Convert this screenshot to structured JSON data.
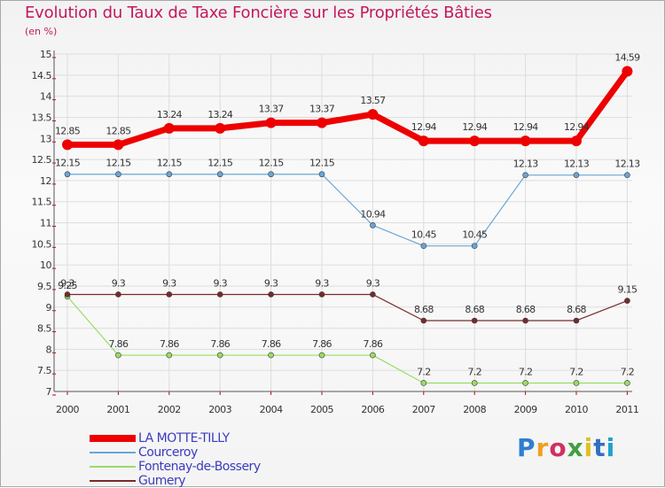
{
  "title": "Evolution du Taux de Taxe Foncière sur les Propriétés Bâties",
  "unit_label": "(en %)",
  "logo": {
    "text": "Proxiti",
    "colors": [
      "#2f7fd0",
      "#f0a020",
      "#d03060",
      "#40a040",
      "#e0c020",
      "#3070c0",
      "#20a0d0"
    ]
  },
  "chart_data": {
    "type": "line",
    "title": "Evolution du Taux de Taxe Foncière sur les Propriétés Bâties",
    "ylabel": "(en %)",
    "xlabel": "",
    "ylim": [
      7,
      15
    ],
    "yticks": [
      "7",
      "7.5",
      "8",
      "8.5",
      "9",
      "9.5",
      "10",
      "10.5",
      "11",
      "11.5",
      "12",
      "12.5",
      "13",
      "13.5",
      "14",
      "14.5",
      "15"
    ],
    "categories": [
      "2000",
      "2001",
      "2002",
      "2003",
      "2004",
      "2005",
      "2006",
      "2007",
      "2008",
      "2009",
      "2010",
      "2011"
    ],
    "series": [
      {
        "name": "LA MOTTE-TILLY",
        "color": "#ee0000",
        "width": 7,
        "marker": 6,
        "values": [
          12.85,
          12.85,
          13.24,
          13.24,
          13.37,
          13.37,
          13.57,
          12.94,
          12.94,
          12.94,
          12.94,
          14.59
        ],
        "labels": [
          "12.85",
          "12.85",
          "13.24",
          "13.24",
          "13.37",
          "13.37",
          "13.57",
          "12.94",
          "12.94",
          "12.94",
          "12.94",
          "14.59"
        ]
      },
      {
        "name": "Courceroy",
        "color": "#6aa6d6",
        "width": 1.2,
        "marker": 3,
        "values": [
          12.15,
          12.15,
          12.15,
          12.15,
          12.15,
          12.15,
          10.94,
          10.45,
          10.45,
          12.13,
          12.13,
          12.13
        ],
        "labels": [
          "12.15",
          "12.15",
          "12.15",
          "12.15",
          "12.15",
          "12.15",
          "10.94",
          "10.45",
          "10.45",
          "12.13",
          "12.13",
          "12.13"
        ]
      },
      {
        "name": "Fontenay-de-Bossery",
        "color": "#99dd66",
        "width": 1.2,
        "marker": 3,
        "values": [
          9.25,
          7.86,
          7.86,
          7.86,
          7.86,
          7.86,
          7.86,
          7.2,
          7.2,
          7.2,
          7.2,
          7.2
        ],
        "labels": [
          "9.25",
          "7.86",
          "7.86",
          "7.86",
          "7.86",
          "7.86",
          "7.86",
          "7.2",
          "7.2",
          "7.2",
          "7.2",
          "7.2"
        ]
      },
      {
        "name": "Gumery",
        "color": "#7a2a2a",
        "width": 1.2,
        "marker": 3,
        "values": [
          9.3,
          9.3,
          9.3,
          9.3,
          9.3,
          9.3,
          9.3,
          8.68,
          8.68,
          8.68,
          8.68,
          9.15
        ],
        "labels": [
          "9.3",
          "9.3",
          "9.3",
          "9.3",
          "9.3",
          "9.3",
          "9.3",
          "8.68",
          "8.68",
          "8.68",
          "8.68",
          "9.15"
        ]
      }
    ],
    "grid": true,
    "legend_position": "bottom-left"
  }
}
